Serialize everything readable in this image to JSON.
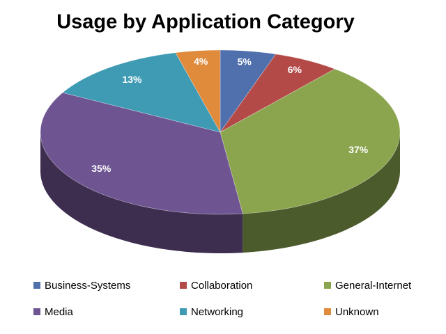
{
  "chart_data": {
    "type": "pie",
    "title": "Usage by Application Category",
    "categories": [
      "Business-Systems",
      "Collaboration",
      "General-Internet",
      "Media",
      "Networking",
      "Unknown"
    ],
    "values": [
      5,
      6,
      37,
      35,
      13,
      4
    ],
    "value_labels": [
      "5%",
      "6%",
      "37%",
      "35%",
      "13%",
      "4%"
    ],
    "colors": [
      "#4f6fad",
      "#b34a47",
      "#8aa54e",
      "#6f5492",
      "#3e9bb3",
      "#e08a3c"
    ]
  }
}
